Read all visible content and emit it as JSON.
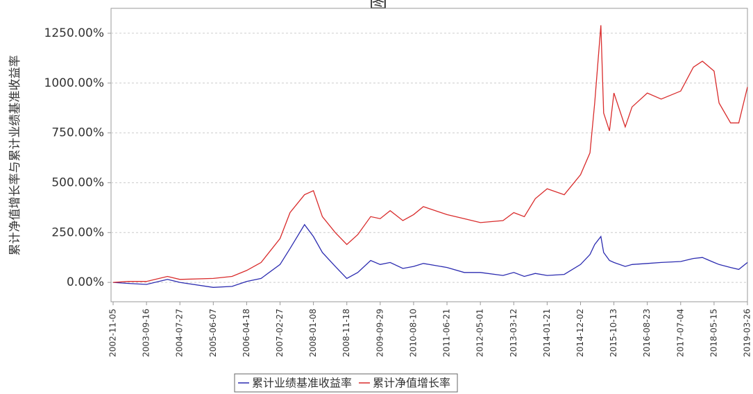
{
  "chart_data": {
    "type": "line",
    "title": "图",
    "y_label": "累计净值增长率与累计业绩基准收益率",
    "x": [
      "2002-11-05",
      "2003-04-01",
      "2003-09-16",
      "2004-04-01",
      "2004-07-27",
      "2005-06-07",
      "2005-12-01",
      "2006-04-18",
      "2006-09-01",
      "2007-02-27",
      "2007-06-01",
      "2007-10-16",
      "2008-01-08",
      "2008-04-01",
      "2008-08-01",
      "2008-11-18",
      "2009-03-01",
      "2009-07-01",
      "2009-09-29",
      "2010-01-01",
      "2010-05-01",
      "2010-08-10",
      "2010-11-10",
      "2011-06-21",
      "2011-12-01",
      "2012-05-01",
      "2012-12-01",
      "2013-03-12",
      "2013-06-20",
      "2013-10-01",
      "2014-01-21",
      "2014-07-01",
      "2014-12-02",
      "2015-03-01",
      "2015-04-15",
      "2015-06-12",
      "2015-07-08",
      "2015-09-01",
      "2015-10-13",
      "2016-01-28",
      "2016-04-01",
      "2016-08-23",
      "2017-01-01",
      "2017-07-04",
      "2017-11-01",
      "2018-01-25",
      "2018-05-15",
      "2018-07-01",
      "2018-10-18",
      "2019-01-03",
      "2019-03-26"
    ],
    "series": [
      {
        "name": "累计业绩基准收益率",
        "color": "#2b2bb0",
        "values": [
          0,
          -5,
          -10,
          15,
          0,
          -25,
          -20,
          5,
          20,
          90,
          170,
          290,
          230,
          150,
          80,
          20,
          50,
          110,
          90,
          100,
          70,
          80,
          95,
          75,
          50,
          50,
          35,
          50,
          30,
          45,
          35,
          40,
          90,
          140,
          190,
          230,
          150,
          110,
          100,
          80,
          90,
          95,
          100,
          105,
          120,
          125,
          100,
          90,
          75,
          65,
          100
        ]
      },
      {
        "name": "累计净值增长率",
        "color": "#d92b2b",
        "values": [
          0,
          5,
          5,
          30,
          15,
          20,
          30,
          60,
          100,
          220,
          350,
          440,
          460,
          330,
          250,
          190,
          240,
          330,
          320,
          360,
          310,
          340,
          380,
          340,
          320,
          300,
          310,
          350,
          330,
          420,
          470,
          440,
          540,
          650,
          900,
          1290,
          850,
          760,
          950,
          780,
          880,
          950,
          920,
          960,
          1080,
          1110,
          1060,
          900,
          800,
          800,
          980
        ]
      }
    ],
    "xlim": [
      "2002-11-05",
      "2019-03-26"
    ],
    "xticks": [
      "2002-11-05",
      "2003-09-16",
      "2004-07-27",
      "2005-06-07",
      "2006-04-18",
      "2007-02-27",
      "2008-01-08",
      "2008-11-18",
      "2009-09-29",
      "2010-08-10",
      "2011-06-21",
      "2012-05-01",
      "2013-03-12",
      "2014-01-21",
      "2014-12-02",
      "2015-10-13",
      "2016-08-23",
      "2017-07-04",
      "2018-05-15",
      "2019-03-26"
    ],
    "ylim": [
      -97,
      1375
    ],
    "yticks": [
      {
        "value": 0,
        "label": "0.00%"
      },
      {
        "value": 250,
        "label": "250.00%"
      },
      {
        "value": 500,
        "label": "500.00%"
      },
      {
        "value": 750,
        "label": "750.00%"
      },
      {
        "value": 1000,
        "label": "1000.00%"
      },
      {
        "value": 1250,
        "label": "1250.00%"
      }
    ],
    "grid": true
  }
}
